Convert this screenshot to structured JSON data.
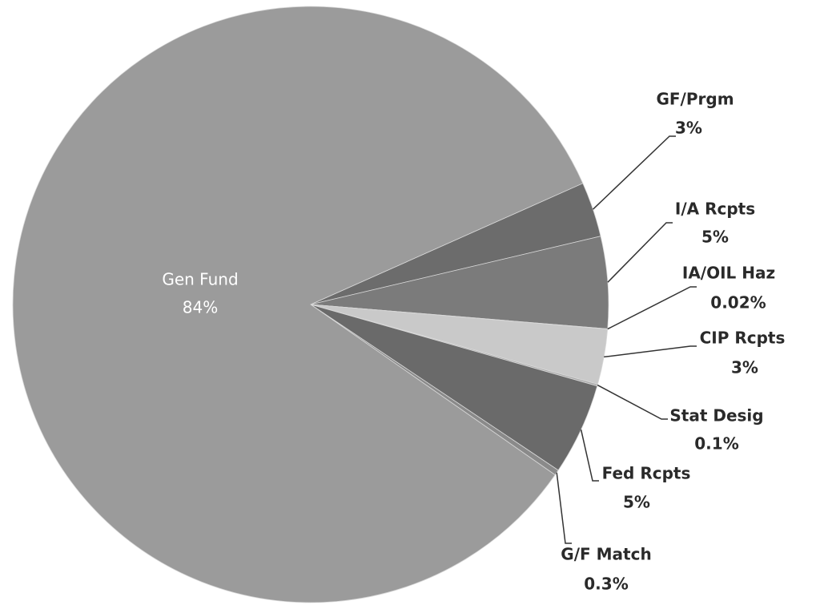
{
  "chart_data": {
    "type": "pie",
    "categories": [
      "GF/Prgm",
      "I/A Rcpts",
      "IA/OIL Haz",
      "CIP Rcpts",
      "Stat Desig",
      "Fed Rcpts",
      "G/F Match",
      "Gen Fund"
    ],
    "values": [
      3,
      5,
      0.02,
      3,
      0.1,
      5,
      0.3,
      84
    ],
    "value_labels": [
      "3%",
      "5%",
      "0.02%",
      "3%",
      "0.1%",
      "5%",
      "0.3%",
      "84%"
    ],
    "colors": [
      "#6c6c6c",
      "#7b7b7b",
      "#bdbdbd",
      "#c9c9c9",
      "#a8a8a8",
      "#6a6a6a",
      "#8a8a8a",
      "#9b9b9b"
    ]
  }
}
